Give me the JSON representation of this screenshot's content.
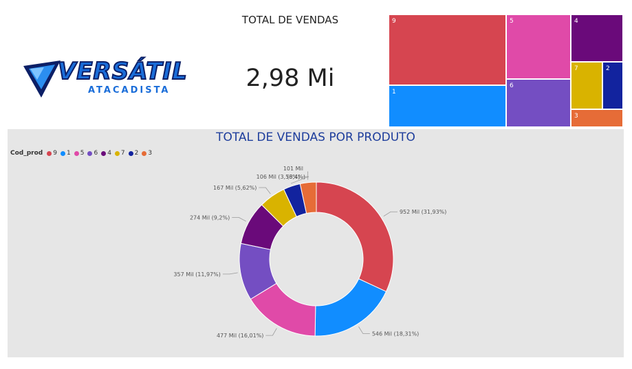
{
  "logo": {
    "word": "VERSÁTIL",
    "sub": "ATACADISTA"
  },
  "kpi": {
    "title": "TOTAL DE VENDAS",
    "value": "2,98 Mi"
  },
  "treemap": {
    "cells": [
      {
        "code": "9",
        "color": "#d64550"
      },
      {
        "code": "5",
        "color": "#e04aa8"
      },
      {
        "code": "4",
        "color": "#6a0a7a"
      },
      {
        "code": "1",
        "color": "#118dff"
      },
      {
        "code": "6",
        "color": "#744ec2"
      },
      {
        "code": "7",
        "color": "#d9b300"
      },
      {
        "code": "2",
        "color": "#12239e"
      },
      {
        "code": "3",
        "color": "#e66c37"
      }
    ]
  },
  "chart_data": {
    "type": "pie",
    "title": "TOTAL DE VENDAS POR PRODUTO",
    "legend_title": "Cod_prod",
    "legend_position": "top-left",
    "categories": [
      "9",
      "1",
      "5",
      "6",
      "4",
      "7",
      "2",
      "3"
    ],
    "values": [
      952,
      546,
      477,
      357,
      274,
      167,
      106,
      101
    ],
    "percents": [
      31.93,
      18.31,
      16.01,
      11.97,
      9.2,
      5.62,
      3.56,
      3.4
    ],
    "labels": [
      "952 Mil (31,93%)",
      "546 Mil (18,31%)",
      "477 Mil (16,01%)",
      "357 Mil (11,97%)",
      "274 Mil (9,2%)",
      "167 Mil (5,62%)",
      "106 Mil (3,56%)",
      "101 Mil (3,4%)"
    ],
    "colors": [
      "#d64550",
      "#118dff",
      "#e04aa8",
      "#744ec2",
      "#6a0a7a",
      "#d9b300",
      "#12239e",
      "#e66c37"
    ],
    "donut": true
  }
}
